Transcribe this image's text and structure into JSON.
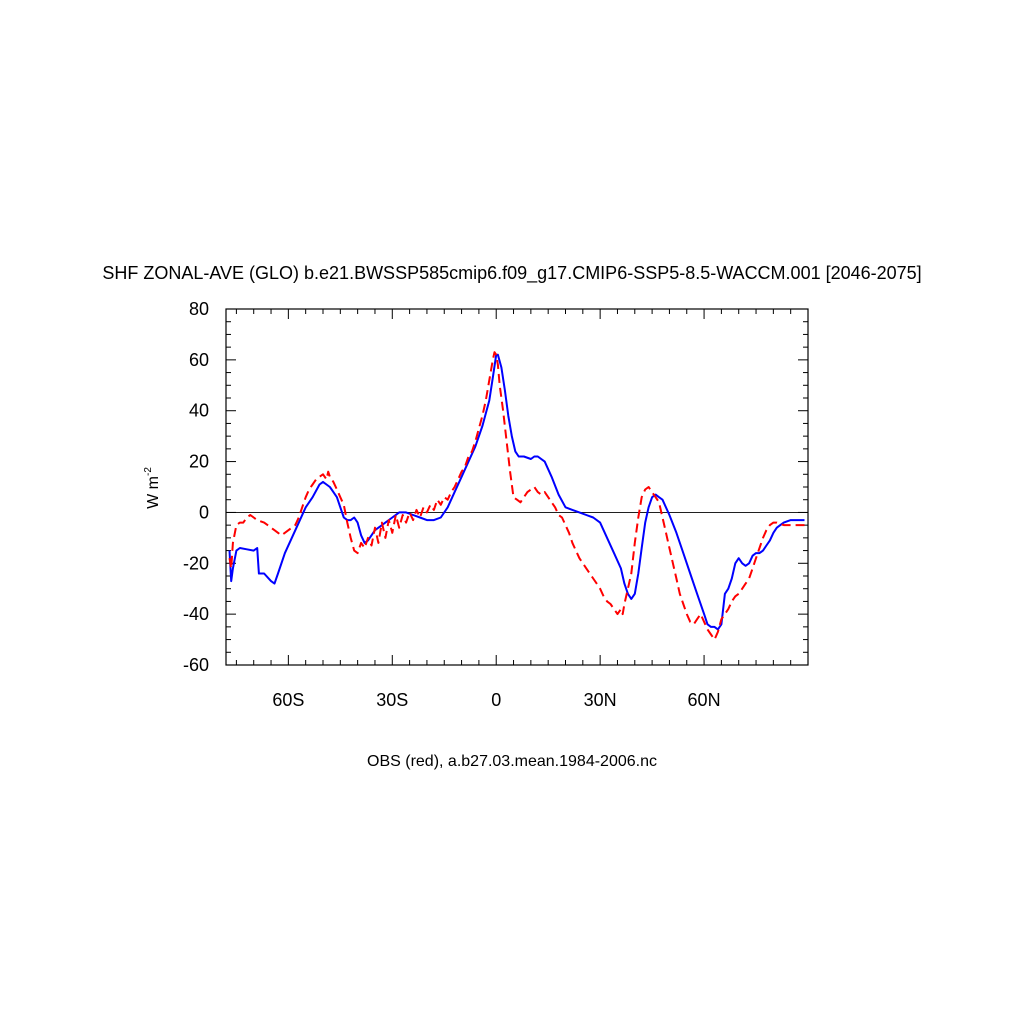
{
  "chart_data": {
    "type": "line",
    "title": "SHF ZONAL-AVE (GLO) b.e21.BWSSP585cmip6.f09_g17.CMIP6-SSP5-8.5-WACCM.001 [2046-2075]",
    "ylabel": "W m",
    "ylabel_sup": "-2",
    "caption": "OBS (red), a.b27.03.mean.1984-2006.nc",
    "xlim": [
      -78,
      90
    ],
    "ylim": [
      -60,
      80
    ],
    "x_ticks": [
      {
        "value": -60,
        "label": "60S"
      },
      {
        "value": -30,
        "label": "30S"
      },
      {
        "value": 0,
        "label": "0"
      },
      {
        "value": 30,
        "label": "30N"
      },
      {
        "value": 60,
        "label": "60N"
      }
    ],
    "y_ticks": [
      {
        "value": -60,
        "label": "-60"
      },
      {
        "value": -40,
        "label": "-40"
      },
      {
        "value": -20,
        "label": "-20"
      },
      {
        "value": 0,
        "label": "0"
      },
      {
        "value": 20,
        "label": "20"
      },
      {
        "value": 40,
        "label": "40"
      },
      {
        "value": 60,
        "label": "60"
      },
      {
        "value": 80,
        "label": "80"
      }
    ],
    "zero_line": true,
    "grid": false,
    "series": [
      {
        "color": "#0000ff",
        "dash": "solid",
        "points": [
          [
            -77,
            -15
          ],
          [
            -76.5,
            -27
          ],
          [
            -76,
            -22
          ],
          [
            -75,
            -15
          ],
          [
            -74,
            -14
          ],
          [
            -72,
            -14.5
          ],
          [
            -70,
            -15
          ],
          [
            -69,
            -14
          ],
          [
            -68.5,
            -24
          ],
          [
            -67,
            -24
          ],
          [
            -65,
            -27
          ],
          [
            -64,
            -28
          ],
          [
            -63,
            -24
          ],
          [
            -61,
            -16
          ],
          [
            -59,
            -10
          ],
          [
            -57,
            -4
          ],
          [
            -55,
            2
          ],
          [
            -53,
            6
          ],
          [
            -51,
            11
          ],
          [
            -50,
            12
          ],
          [
            -49,
            11
          ],
          [
            -48,
            10
          ],
          [
            -47,
            8
          ],
          [
            -46,
            6
          ],
          [
            -45,
            2
          ],
          [
            -44,
            -2
          ],
          [
            -43,
            -3
          ],
          [
            -42,
            -3
          ],
          [
            -41,
            -2
          ],
          [
            -40,
            -4
          ],
          [
            -39,
            -9
          ],
          [
            -38,
            -12
          ],
          [
            -37,
            -11
          ],
          [
            -36,
            -9
          ],
          [
            -35,
            -7
          ],
          [
            -34,
            -6
          ],
          [
            -32,
            -4
          ],
          [
            -30,
            -2
          ],
          [
            -28,
            0
          ],
          [
            -26,
            0
          ],
          [
            -24,
            -1
          ],
          [
            -22,
            -2
          ],
          [
            -20,
            -3
          ],
          [
            -18,
            -3
          ],
          [
            -16,
            -2
          ],
          [
            -14,
            2
          ],
          [
            -12,
            8
          ],
          [
            -10,
            14
          ],
          [
            -8,
            20
          ],
          [
            -6,
            26
          ],
          [
            -4,
            34
          ],
          [
            -2,
            44
          ],
          [
            -1,
            53
          ],
          [
            0,
            62
          ],
          [
            0.5,
            62
          ],
          [
            1.5,
            57
          ],
          [
            2.5,
            48
          ],
          [
            3.5,
            38
          ],
          [
            4.5,
            30
          ],
          [
            5.5,
            24
          ],
          [
            6.5,
            22
          ],
          [
            8,
            22
          ],
          [
            10,
            21
          ],
          [
            11,
            22
          ],
          [
            12,
            22
          ],
          [
            14,
            20
          ],
          [
            16,
            14
          ],
          [
            18,
            7
          ],
          [
            20,
            2
          ],
          [
            22,
            1
          ],
          [
            24,
            0
          ],
          [
            26,
            -1
          ],
          [
            28,
            -2
          ],
          [
            30,
            -4
          ],
          [
            32,
            -10
          ],
          [
            34,
            -16
          ],
          [
            36,
            -22
          ],
          [
            37,
            -28
          ],
          [
            38,
            -32
          ],
          [
            39,
            -34
          ],
          [
            40,
            -32
          ],
          [
            41,
            -24
          ],
          [
            42,
            -14
          ],
          [
            43,
            -4
          ],
          [
            44,
            2
          ],
          [
            45,
            6
          ],
          [
            46,
            7
          ],
          [
            47,
            6
          ],
          [
            48,
            5
          ],
          [
            50,
            -1
          ],
          [
            52,
            -8
          ],
          [
            54,
            -16
          ],
          [
            56,
            -24
          ],
          [
            58,
            -32
          ],
          [
            60,
            -40
          ],
          [
            61,
            -44
          ],
          [
            62,
            -45
          ],
          [
            63,
            -45
          ],
          [
            64,
            -46
          ],
          [
            65,
            -44
          ],
          [
            66,
            -32
          ],
          [
            67,
            -30
          ],
          [
            68,
            -26
          ],
          [
            69,
            -20
          ],
          [
            70,
            -18
          ],
          [
            71,
            -20
          ],
          [
            72,
            -21
          ],
          [
            73,
            -20
          ],
          [
            74,
            -17
          ],
          [
            75,
            -16
          ],
          [
            76,
            -16
          ],
          [
            77,
            -15
          ],
          [
            78,
            -13
          ],
          [
            79,
            -11
          ],
          [
            80,
            -8
          ],
          [
            81,
            -6
          ],
          [
            82,
            -5
          ],
          [
            83,
            -4
          ],
          [
            84,
            -3.5
          ],
          [
            85,
            -3
          ],
          [
            87,
            -3
          ],
          [
            89,
            -3
          ]
        ]
      },
      {
        "color": "#ff0000",
        "dash": "dashed",
        "points": [
          [
            -77,
            -18
          ],
          [
            -76.5,
            -22
          ],
          [
            -76,
            -12
          ],
          [
            -75,
            -5
          ],
          [
            -74,
            -4
          ],
          [
            -73,
            -4
          ],
          [
            -72,
            -2
          ],
          [
            -71,
            -1
          ],
          [
            -70,
            -2
          ],
          [
            -69,
            -3
          ],
          [
            -67,
            -4
          ],
          [
            -66,
            -5
          ],
          [
            -65,
            -6
          ],
          [
            -64,
            -7
          ],
          [
            -63,
            -8
          ],
          [
            -62,
            -9
          ],
          [
            -61,
            -8
          ],
          [
            -60,
            -7
          ],
          [
            -59,
            -6
          ],
          [
            -58,
            -5
          ],
          [
            -57,
            -2
          ],
          [
            -56,
            2
          ],
          [
            -55,
            6
          ],
          [
            -54,
            9
          ],
          [
            -53,
            11
          ],
          [
            -52,
            13
          ],
          [
            -51,
            14
          ],
          [
            -50,
            15
          ],
          [
            -49,
            13
          ],
          [
            -48.5,
            16
          ],
          [
            -48,
            14
          ],
          [
            -47,
            12
          ],
          [
            -46,
            9
          ],
          [
            -45,
            6
          ],
          [
            -44,
            3
          ],
          [
            -43,
            -4
          ],
          [
            -42,
            -10
          ],
          [
            -41,
            -15
          ],
          [
            -40,
            -16
          ],
          [
            -39,
            -12
          ],
          [
            -38,
            -14
          ],
          [
            -37,
            -10
          ],
          [
            -36,
            -13
          ],
          [
            -35,
            -6
          ],
          [
            -34,
            -12
          ],
          [
            -33,
            -4
          ],
          [
            -32,
            -10
          ],
          [
            -31,
            -3
          ],
          [
            -30,
            -8
          ],
          [
            -29,
            -1
          ],
          [
            -28,
            -6
          ],
          [
            -27,
            -1
          ],
          [
            -26,
            -4
          ],
          [
            -25,
            0
          ],
          [
            -24,
            -3
          ],
          [
            -23,
            1
          ],
          [
            -22,
            -2
          ],
          [
            -21,
            2
          ],
          [
            -20,
            0
          ],
          [
            -19,
            3
          ],
          [
            -18,
            1
          ],
          [
            -17,
            5
          ],
          [
            -16,
            3
          ],
          [
            -15,
            6
          ],
          [
            -14,
            5
          ],
          [
            -13,
            8
          ],
          [
            -12,
            10
          ],
          [
            -11,
            13
          ],
          [
            -10,
            16
          ],
          [
            -9,
            18
          ],
          [
            -8,
            22
          ],
          [
            -7,
            24
          ],
          [
            -6,
            28
          ],
          [
            -5,
            33
          ],
          [
            -4,
            38
          ],
          [
            -3,
            44
          ],
          [
            -2,
            52
          ],
          [
            -1,
            60
          ],
          [
            -0.5,
            63
          ],
          [
            0,
            62
          ],
          [
            0.5,
            58
          ],
          [
            1,
            50
          ],
          [
            2,
            40
          ],
          [
            3,
            28
          ],
          [
            4,
            16
          ],
          [
            5,
            6
          ],
          [
            6,
            5
          ],
          [
            7,
            4
          ],
          [
            8,
            6
          ],
          [
            9,
            8
          ],
          [
            10,
            9
          ],
          [
            11,
            10
          ],
          [
            12,
            8
          ],
          [
            13,
            7
          ],
          [
            14,
            8
          ],
          [
            15,
            6
          ],
          [
            16,
            4
          ],
          [
            17,
            2
          ],
          [
            18,
            -1
          ],
          [
            19,
            -2
          ],
          [
            20,
            -5
          ],
          [
            21,
            -8
          ],
          [
            22,
            -12
          ],
          [
            23,
            -15
          ],
          [
            24,
            -18
          ],
          [
            25,
            -20
          ],
          [
            26,
            -22
          ],
          [
            27,
            -24
          ],
          [
            28,
            -26
          ],
          [
            29,
            -28
          ],
          [
            30,
            -30
          ],
          [
            31,
            -33
          ],
          [
            32,
            -35
          ],
          [
            33,
            -36
          ],
          [
            34,
            -38
          ],
          [
            35,
            -40
          ],
          [
            36,
            -38
          ],
          [
            36.5,
            -40
          ],
          [
            37,
            -36
          ],
          [
            38,
            -30
          ],
          [
            39,
            -24
          ],
          [
            40,
            -12
          ],
          [
            41,
            -2
          ],
          [
            42,
            6
          ],
          [
            43,
            9
          ],
          [
            44,
            10
          ],
          [
            45,
            8
          ],
          [
            46,
            6
          ],
          [
            47,
            4
          ],
          [
            48,
            -2
          ],
          [
            49,
            -8
          ],
          [
            50,
            -14
          ],
          [
            51,
            -20
          ],
          [
            52,
            -26
          ],
          [
            53,
            -32
          ],
          [
            54,
            -36
          ],
          [
            55,
            -40
          ],
          [
            56,
            -43
          ],
          [
            57,
            -44
          ],
          [
            58,
            -42
          ],
          [
            59,
            -40
          ],
          [
            60,
            -43
          ],
          [
            61,
            -46
          ],
          [
            62,
            -48
          ],
          [
            63,
            -50
          ],
          [
            64,
            -47
          ],
          [
            65,
            -42
          ],
          [
            66,
            -40
          ],
          [
            67,
            -38
          ],
          [
            68,
            -35
          ],
          [
            69,
            -33
          ],
          [
            70,
            -32
          ],
          [
            71,
            -30
          ],
          [
            72,
            -28
          ],
          [
            73,
            -26
          ],
          [
            74,
            -22
          ],
          [
            75,
            -18
          ],
          [
            76,
            -14
          ],
          [
            77,
            -10
          ],
          [
            78,
            -7
          ],
          [
            79,
            -5
          ],
          [
            80,
            -4
          ],
          [
            81,
            -4
          ],
          [
            82,
            -4.5
          ],
          [
            83,
            -5
          ],
          [
            85,
            -5
          ],
          [
            87,
            -5
          ],
          [
            89,
            -5
          ]
        ]
      }
    ]
  }
}
